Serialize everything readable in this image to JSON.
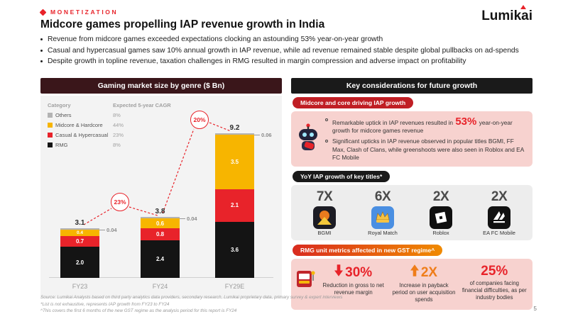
{
  "colors": {
    "accent_red": "#e8232a",
    "left_header_bg": "#3a161a",
    "right_header_bg": "#1a1a1a",
    "crimson_banner": "#c01e24",
    "black_banner": "#1a1a1a",
    "gst_gradient_start": "#d92b1f",
    "gst_gradient_end": "#f08a00",
    "pink_box": "#f7d2cf",
    "gray_box": "#ededed"
  },
  "header": {
    "eyebrow": "MONETIZATION",
    "logo": "Lumikai",
    "title": "Midcore games propelling IAP revenue growth in India",
    "bullets": [
      "Revenue from midcore games exceeded expectations clocking an astounding 53% year-on-year growth",
      "Casual and hypercasual games saw 10% annual growth in IAP revenue, while ad revenue remained stable despite global pullbacks on ad-spends",
      "Despite growth in topline revenue, taxation challenges in RMG resulted in margin compression and adverse impact on profitability"
    ]
  },
  "left_panel": {
    "title": "Gaming market size by genre ($ Bn)",
    "legend": {
      "header_category": "Category",
      "header_cagr": "Expected 5-year CAGR",
      "rows": [
        {
          "label": "Others",
          "cagr": "8%",
          "color": "#b3b3b3"
        },
        {
          "label": "Midcore & Hardcore",
          "cagr": "44%",
          "color": "#f7b500"
        },
        {
          "label": "Casual & Hypercasual",
          "cagr": "23%",
          "color": "#e8232a"
        },
        {
          "label": "RMG",
          "cagr": "8%",
          "color": "#141414"
        }
      ]
    },
    "callouts": {
      "fy23_fy24": "23%",
      "fy24_fy29": "20%"
    },
    "chart_data": {
      "type": "bar",
      "stacked": true,
      "title": "Gaming market size by genre ($ Bn)",
      "categories": [
        "FY23",
        "FY24",
        "FY29E"
      ],
      "series": [
        {
          "name": "RMG",
          "color": "#141414",
          "values": [
            2.0,
            2.4,
            3.6
          ]
        },
        {
          "name": "Casual & Hypercasual",
          "color": "#e8232a",
          "values": [
            0.7,
            0.8,
            2.1
          ]
        },
        {
          "name": "Midcore & Hardcore",
          "color": "#f7b500",
          "values": [
            0.4,
            0.6,
            3.5
          ]
        },
        {
          "name": "Others",
          "color": "#b3b3b3",
          "values": [
            0.04,
            0.04,
            0.06
          ]
        }
      ],
      "totals": [
        3.1,
        3.8,
        9.2
      ],
      "others_value_labels": [
        "0.04",
        "0.04",
        "0.06"
      ],
      "cagr_annotations": [
        "23%",
        "20%"
      ],
      "ylabel": "$ Bn",
      "ylim": [
        0,
        10
      ],
      "grid": false,
      "legend_position": "top-left"
    }
  },
  "right_panel": {
    "title": "Key considerations for future growth",
    "iap_section": {
      "banner": "Midcore and core driving IAP growth",
      "bullet1_pre": "Remarkable uptick in IAP revenues resulted in",
      "bullet1_highlight": "53%",
      "bullet1_post": "year-on-year growth for midcore games revenue",
      "bullet2": "Significant upticks in IAP revenue observed in popular titles BGMI, FF Max, Clash of Clans, while greenshoots were also seen in Roblox and EA FC Mobile"
    },
    "titles_section": {
      "banner": "YoY IAP growth of key titles*",
      "items": [
        {
          "multiplier": "7X",
          "label": "BGMI"
        },
        {
          "multiplier": "6X",
          "label": "Royal Match"
        },
        {
          "multiplier": "2X",
          "label": "Roblox"
        },
        {
          "multiplier": "2X",
          "label": "EA FC Mobile"
        }
      ]
    },
    "gst_section": {
      "banner": "RMG unit metrics affected in new GST regime^",
      "items": [
        {
          "value": "30%",
          "desc": "Reduction in gross to net revenue margin",
          "direction": "down"
        },
        {
          "value": "2X",
          "desc": "Increase in payback period on user acquisition spends",
          "direction": "up"
        },
        {
          "value": "25%",
          "desc": "of companies facing financial difficulties, as per industry bodies",
          "direction": "none"
        }
      ]
    }
  },
  "footer": {
    "sources": [
      "Source: Lumikai Analysts based on third party analytics data providers, secondary research, Lumikai proprietary data, primary survey & expert interviews",
      "*List is not exhaustive, represents IAP growth from FY23 to FY24",
      "^This covers the first 6 months of the new GST regime as the analysis period for this report is FY24"
    ],
    "page_number": "5"
  }
}
